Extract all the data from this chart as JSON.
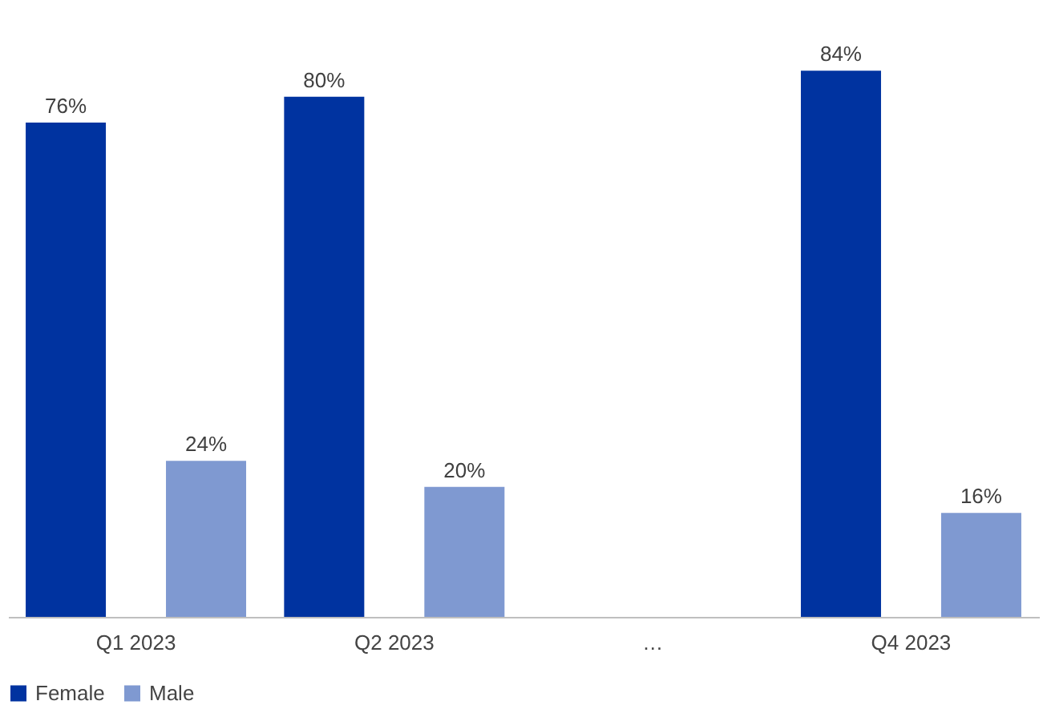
{
  "chart_data": {
    "type": "bar",
    "categories": [
      "Q1 2023",
      "Q2 2023",
      "…",
      "Q4 2023"
    ],
    "series": [
      {
        "name": "Female",
        "color": "#0033a0",
        "values": [
          76,
          80,
          null,
          84
        ],
        "value_labels": [
          "76%",
          "80%",
          null,
          "84%"
        ]
      },
      {
        "name": "Male",
        "color": "#7f99d1",
        "values": [
          24,
          20,
          null,
          16
        ],
        "value_labels": [
          "24%",
          "20%",
          null,
          "16%"
        ]
      }
    ],
    "legend": "bottom",
    "grid": false
  }
}
